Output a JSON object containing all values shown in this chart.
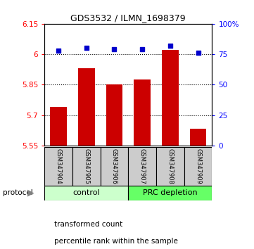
{
  "title": "GDS3532 / ILMN_1698379",
  "samples": [
    "GSM347904",
    "GSM347905",
    "GSM347906",
    "GSM347907",
    "GSM347908",
    "GSM347909"
  ],
  "red_values": [
    5.74,
    5.93,
    5.85,
    5.875,
    6.02,
    5.635
  ],
  "blue_values": [
    78,
    80,
    79,
    79,
    82,
    76
  ],
  "ylim_left": [
    5.55,
    6.15
  ],
  "ylim_right": [
    0,
    100
  ],
  "yticks_left": [
    5.55,
    5.7,
    5.85,
    6.0,
    6.15
  ],
  "yticks_right": [
    0,
    25,
    50,
    75,
    100
  ],
  "ytick_labels_left": [
    "5.55",
    "5.7",
    "5.85",
    "6",
    "6.15"
  ],
  "ytick_labels_right": [
    "0",
    "25",
    "50",
    "75",
    "100%"
  ],
  "hlines": [
    5.7,
    5.85,
    6.0
  ],
  "group_labels": [
    "control",
    "PRC depletion"
  ],
  "protocol_label": "protocol",
  "legend_red": "transformed count",
  "legend_blue": "percentile rank within the sample",
  "bar_color": "#cc0000",
  "dot_color": "#0000cc",
  "control_bg": "#ccffcc",
  "prc_bg": "#66ff66",
  "sample_bg": "#cccccc",
  "bar_width": 0.6,
  "dot_size": 20,
  "title_fontsize": 9,
  "tick_fontsize": 7.5,
  "sample_fontsize": 6,
  "group_fontsize": 8,
  "legend_fontsize": 7.5
}
